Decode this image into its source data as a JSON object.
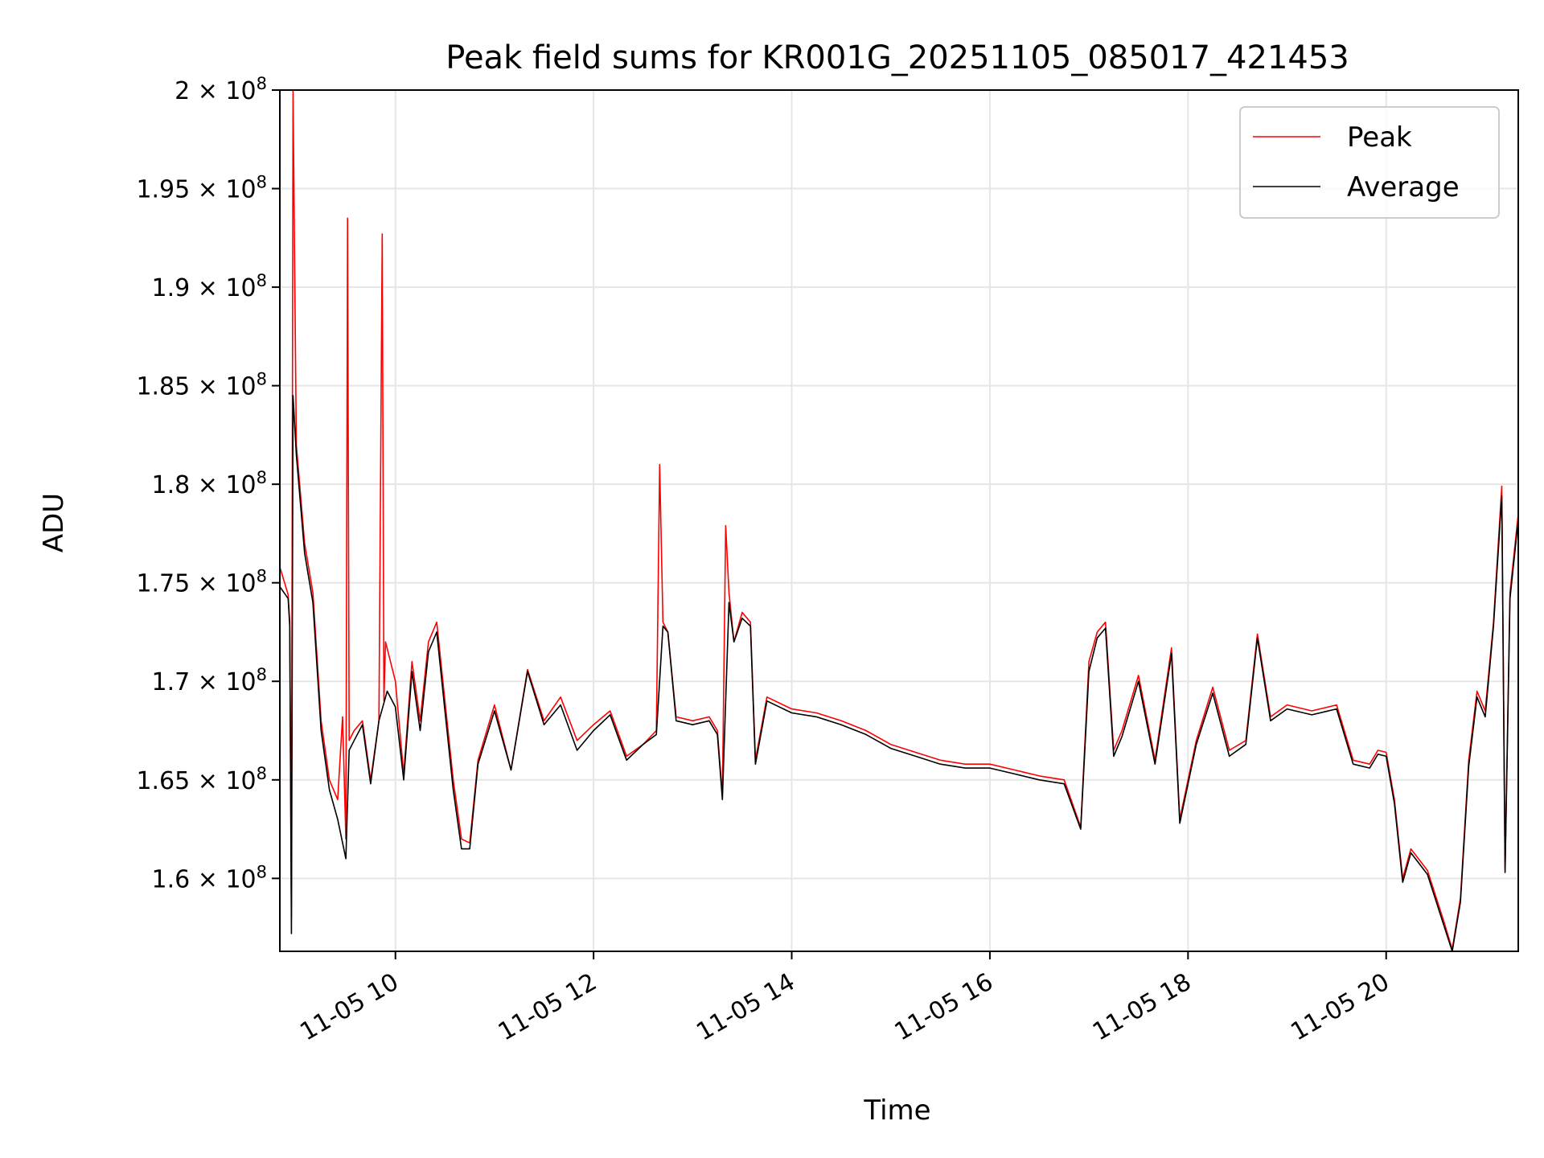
{
  "chart_data": {
    "type": "line",
    "title": "Peak field sums for KR001G_20251105_085017_421453",
    "xlabel": "Time",
    "ylabel": "ADU",
    "xlim": [
      "2025-11-05 08:50",
      "2025-11-05 21:20"
    ],
    "ylim": [
      156300000,
      200000000
    ],
    "grid": true,
    "legend_position": "top-right",
    "colors": {
      "peak": "#ff0000",
      "average": "#000000"
    },
    "x_ticks": [
      {
        "value": "2025-11-05 10:00",
        "label": "11-05 10"
      },
      {
        "value": "2025-11-05 12:00",
        "label": "11-05 12"
      },
      {
        "value": "2025-11-05 14:00",
        "label": "11-05 14"
      },
      {
        "value": "2025-11-05 16:00",
        "label": "11-05 16"
      },
      {
        "value": "2025-11-05 18:00",
        "label": "11-05 18"
      },
      {
        "value": "2025-11-05 20:00",
        "label": "11-05 20"
      }
    ],
    "y_ticks": [
      {
        "value": 160000000,
        "mantissa": "1.6"
      },
      {
        "value": 165000000,
        "mantissa": "1.65"
      },
      {
        "value": 170000000,
        "mantissa": "1.7"
      },
      {
        "value": 175000000,
        "mantissa": "1.75"
      },
      {
        "value": 180000000,
        "mantissa": "1.8"
      },
      {
        "value": 185000000,
        "mantissa": "1.85"
      },
      {
        "value": 190000000,
        "mantissa": "1.9"
      },
      {
        "value": 195000000,
        "mantissa": "1.95"
      },
      {
        "value": 200000000,
        "mantissa": "2"
      }
    ],
    "y_tick_times": "× 10",
    "y_tick_exponent": "8",
    "series": [
      {
        "name": "Peak",
        "x": [
          "2025-11-05 08:50",
          "2025-11-05 08:55",
          "2025-11-05 08:56",
          "2025-11-05 08:57",
          "2025-11-05 08:58",
          "2025-11-05 09:00",
          "2025-11-05 09:05",
          "2025-11-05 09:10",
          "2025-11-05 09:15",
          "2025-11-05 09:20",
          "2025-11-05 09:25",
          "2025-11-05 09:28",
          "2025-11-05 09:30",
          "2025-11-05 09:31",
          "2025-11-05 09:32",
          "2025-11-05 09:35",
          "2025-11-05 09:40",
          "2025-11-05 09:45",
          "2025-11-05 09:50",
          "2025-11-05 09:52",
          "2025-11-05 09:53",
          "2025-11-05 09:54",
          "2025-11-05 10:00",
          "2025-11-05 10:05",
          "2025-11-05 10:10",
          "2025-11-05 10:15",
          "2025-11-05 10:20",
          "2025-11-05 10:25",
          "2025-11-05 10:30",
          "2025-11-05 10:35",
          "2025-11-05 10:40",
          "2025-11-05 10:45",
          "2025-11-05 10:50",
          "2025-11-05 11:00",
          "2025-11-05 11:10",
          "2025-11-05 11:20",
          "2025-11-05 11:30",
          "2025-11-05 11:40",
          "2025-11-05 11:50",
          "2025-11-05 12:00",
          "2025-11-05 12:10",
          "2025-11-05 12:20",
          "2025-11-05 12:30",
          "2025-11-05 12:38",
          "2025-11-05 12:40",
          "2025-11-05 12:42",
          "2025-11-05 12:45",
          "2025-11-05 12:50",
          "2025-11-05 13:00",
          "2025-11-05 13:10",
          "2025-11-05 13:15",
          "2025-11-05 13:18",
          "2025-11-05 13:20",
          "2025-11-05 13:22",
          "2025-11-05 13:25",
          "2025-11-05 13:30",
          "2025-11-05 13:35",
          "2025-11-05 13:38",
          "2025-11-05 13:45",
          "2025-11-05 14:00",
          "2025-11-05 14:15",
          "2025-11-05 14:30",
          "2025-11-05 14:45",
          "2025-11-05 15:00",
          "2025-11-05 15:15",
          "2025-11-05 15:30",
          "2025-11-05 15:45",
          "2025-11-05 16:00",
          "2025-11-05 16:15",
          "2025-11-05 16:30",
          "2025-11-05 16:45",
          "2025-11-05 16:55",
          "2025-11-05 17:00",
          "2025-11-05 17:05",
          "2025-11-05 17:10",
          "2025-11-05 17:15",
          "2025-11-05 17:20",
          "2025-11-05 17:30",
          "2025-11-05 17:40",
          "2025-11-05 17:50",
          "2025-11-05 17:55",
          "2025-11-05 18:05",
          "2025-11-05 18:15",
          "2025-11-05 18:25",
          "2025-11-05 18:35",
          "2025-11-05 18:42",
          "2025-11-05 18:50",
          "2025-11-05 19:00",
          "2025-11-05 19:15",
          "2025-11-05 19:30",
          "2025-11-05 19:40",
          "2025-11-05 19:50",
          "2025-11-05 19:55",
          "2025-11-05 20:00",
          "2025-11-05 20:05",
          "2025-11-05 20:10",
          "2025-11-05 20:15",
          "2025-11-05 20:25",
          "2025-11-05 20:35",
          "2025-11-05 20:40",
          "2025-11-05 20:45",
          "2025-11-05 20:50",
          "2025-11-05 20:55",
          "2025-11-05 21:00",
          "2025-11-05 21:05",
          "2025-11-05 21:10",
          "2025-11-05 21:12",
          "2025-11-05 21:15",
          "2025-11-05 21:20"
        ],
        "values": [
          175800000,
          174400000,
          173000000,
          158000000,
          200000000,
          182000000,
          177000000,
          174500000,
          168000000,
          165000000,
          164000000,
          168200000,
          162000000,
          193500000,
          167000000,
          167500000,
          168000000,
          165000000,
          168000000,
          192700000,
          169000000,
          172000000,
          170000000,
          165300000,
          171000000,
          168000000,
          172000000,
          173000000,
          169000000,
          165000000,
          162000000,
          161800000,
          166000000,
          168800000,
          165500000,
          170600000,
          168000000,
          169200000,
          167000000,
          167800000,
          168500000,
          166200000,
          166800000,
          167500000,
          181000000,
          173000000,
          172500000,
          168200000,
          168000000,
          168200000,
          167500000,
          164200000,
          177900000,
          174500000,
          172000000,
          173500000,
          173000000,
          166000000,
          169200000,
          168600000,
          168400000,
          168000000,
          167500000,
          166800000,
          166400000,
          166000000,
          165800000,
          165800000,
          165500000,
          165200000,
          165000000,
          162600000,
          171000000,
          172500000,
          173000000,
          166500000,
          167500000,
          170300000,
          166000000,
          171700000,
          163000000,
          167000000,
          169700000,
          166500000,
          167000000,
          172400000,
          168200000,
          168800000,
          168500000,
          168800000,
          166000000,
          165800000,
          166500000,
          166400000,
          164000000,
          160000000,
          161500000,
          160400000,
          157800000,
          156400000,
          159000000,
          166000000,
          169500000,
          168500000,
          173000000,
          179900000,
          160500000,
          174500000,
          178500000
        ]
      },
      {
        "name": "Average",
        "x": [
          "2025-11-05 08:50",
          "2025-11-05 08:55",
          "2025-11-05 08:56",
          "2025-11-05 08:57",
          "2025-11-05 08:58",
          "2025-11-05 09:00",
          "2025-11-05 09:05",
          "2025-11-05 09:10",
          "2025-11-05 09:15",
          "2025-11-05 09:20",
          "2025-11-05 09:25",
          "2025-11-05 09:30",
          "2025-11-05 09:32",
          "2025-11-05 09:35",
          "2025-11-05 09:40",
          "2025-11-05 09:45",
          "2025-11-05 09:50",
          "2025-11-05 09:55",
          "2025-11-05 10:00",
          "2025-11-05 10:05",
          "2025-11-05 10:10",
          "2025-11-05 10:15",
          "2025-11-05 10:20",
          "2025-11-05 10:25",
          "2025-11-05 10:30",
          "2025-11-05 10:35",
          "2025-11-05 10:40",
          "2025-11-05 10:45",
          "2025-11-05 10:50",
          "2025-11-05 11:00",
          "2025-11-05 11:10",
          "2025-11-05 11:20",
          "2025-11-05 11:30",
          "2025-11-05 11:40",
          "2025-11-05 11:50",
          "2025-11-05 12:00",
          "2025-11-05 12:10",
          "2025-11-05 12:20",
          "2025-11-05 12:30",
          "2025-11-05 12:38",
          "2025-11-05 12:42",
          "2025-11-05 12:45",
          "2025-11-05 12:50",
          "2025-11-05 13:00",
          "2025-11-05 13:10",
          "2025-11-05 13:15",
          "2025-11-05 13:18",
          "2025-11-05 13:22",
          "2025-11-05 13:25",
          "2025-11-05 13:30",
          "2025-11-05 13:35",
          "2025-11-05 13:38",
          "2025-11-05 13:45",
          "2025-11-05 14:00",
          "2025-11-05 14:15",
          "2025-11-05 14:30",
          "2025-11-05 14:45",
          "2025-11-05 15:00",
          "2025-11-05 15:15",
          "2025-11-05 15:30",
          "2025-11-05 15:45",
          "2025-11-05 16:00",
          "2025-11-05 16:15",
          "2025-11-05 16:30",
          "2025-11-05 16:45",
          "2025-11-05 16:55",
          "2025-11-05 17:00",
          "2025-11-05 17:05",
          "2025-11-05 17:10",
          "2025-11-05 17:15",
          "2025-11-05 17:20",
          "2025-11-05 17:30",
          "2025-11-05 17:40",
          "2025-11-05 17:50",
          "2025-11-05 17:55",
          "2025-11-05 18:05",
          "2025-11-05 18:15",
          "2025-11-05 18:25",
          "2025-11-05 18:35",
          "2025-11-05 18:42",
          "2025-11-05 18:50",
          "2025-11-05 19:00",
          "2025-11-05 19:15",
          "2025-11-05 19:30",
          "2025-11-05 19:40",
          "2025-11-05 19:50",
          "2025-11-05 19:55",
          "2025-11-05 20:00",
          "2025-11-05 20:05",
          "2025-11-05 20:10",
          "2025-11-05 20:15",
          "2025-11-05 20:25",
          "2025-11-05 20:35",
          "2025-11-05 20:40",
          "2025-11-05 20:45",
          "2025-11-05 20:50",
          "2025-11-05 20:55",
          "2025-11-05 21:00",
          "2025-11-05 21:05",
          "2025-11-05 21:10",
          "2025-11-05 21:12",
          "2025-11-05 21:15",
          "2025-11-05 21:20"
        ],
        "values": [
          174800000,
          174200000,
          172800000,
          157200000,
          184500000,
          181500000,
          176500000,
          174000000,
          167500000,
          164500000,
          163000000,
          161000000,
          166500000,
          167000000,
          167800000,
          164800000,
          168000000,
          169500000,
          168700000,
          165000000,
          170500000,
          167500000,
          171500000,
          172500000,
          168500000,
          164500000,
          161500000,
          161500000,
          165800000,
          168500000,
          165500000,
          170500000,
          167800000,
          168800000,
          166500000,
          167500000,
          168300000,
          166000000,
          166800000,
          167300000,
          172800000,
          172500000,
          168000000,
          167800000,
          168000000,
          167300000,
          164000000,
          174000000,
          172000000,
          173200000,
          172800000,
          165800000,
          169000000,
          168400000,
          168200000,
          167800000,
          167300000,
          166600000,
          166200000,
          165800000,
          165600000,
          165600000,
          165300000,
          165000000,
          164800000,
          162500000,
          170500000,
          172200000,
          172700000,
          166200000,
          167200000,
          170000000,
          165800000,
          171400000,
          162800000,
          166800000,
          169400000,
          166200000,
          166800000,
          172200000,
          168000000,
          168600000,
          168300000,
          168600000,
          165800000,
          165600000,
          166300000,
          166200000,
          163800000,
          159800000,
          161300000,
          160200000,
          157600000,
          156300000,
          158800000,
          165700000,
          169200000,
          168200000,
          172800000,
          179400000,
          160300000,
          174200000,
          178200000
        ]
      }
    ]
  }
}
